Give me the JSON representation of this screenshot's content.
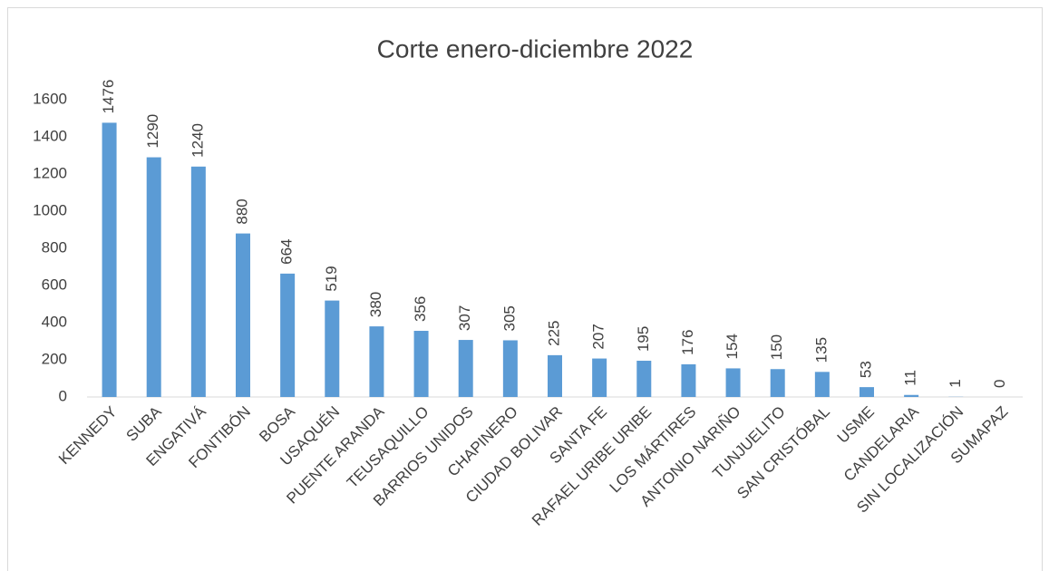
{
  "chart_data": {
    "type": "bar",
    "title": "Corte enero-diciembre 2022",
    "categories": [
      "KENNEDY",
      "SUBA",
      "ENGATIVÁ",
      "FONTIBÓN",
      "BOSA",
      "USAQUÉN",
      "PUENTE ARANDA",
      "TEUSAQUILLO",
      "BARRIOS UNIDOS",
      "CHAPINERO",
      "CIUDAD BOLIVAR",
      "SANTA FE",
      "RAFAEL URIBE URIBE",
      "LOS MÁRTIRES",
      "ANTONIO NARIÑO",
      "TUNJUELITO",
      "SAN CRISTÓBAL",
      "USME",
      "CANDELARIA",
      "SIN LOCALIZACIÓN",
      "SUMAPAZ"
    ],
    "values": [
      1476,
      1290,
      1240,
      880,
      664,
      519,
      380,
      356,
      307,
      305,
      225,
      207,
      195,
      176,
      154,
      150,
      135,
      53,
      11,
      1,
      0
    ],
    "color": "#5b9bd5",
    "ylim": [
      0,
      1600
    ],
    "yticks": [
      0,
      200,
      400,
      600,
      800,
      1000,
      1200,
      1400,
      1600
    ],
    "grid": false
  }
}
